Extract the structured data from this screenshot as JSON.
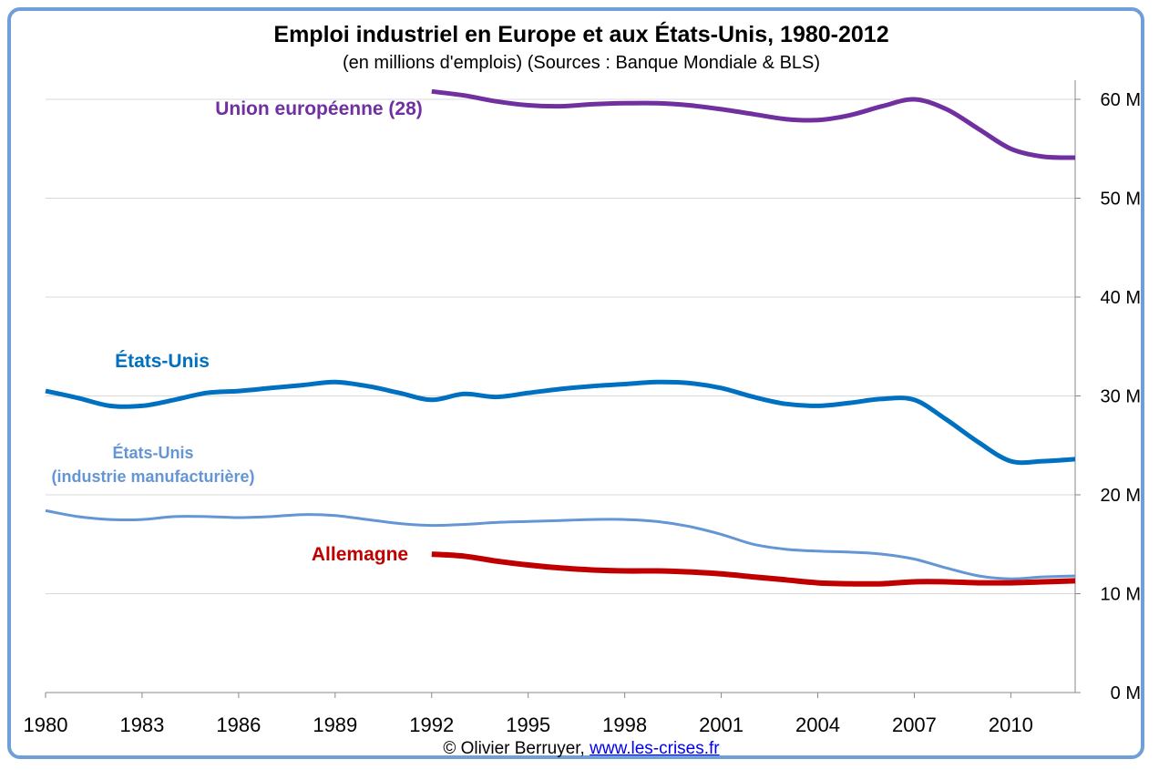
{
  "title": "Emploi industriel en Europe et aux États-Unis, 1980-2012",
  "subtitle": "(en millions d'emplois) (Sources : Banque Mondiale & BLS)",
  "footer": {
    "author": "© Olivier Berruyer,",
    "link": "www.les-crises.fr"
  },
  "chart_data": {
    "type": "line",
    "title": "Emploi industriel en Europe et aux États-Unis, 1980-2012",
    "subtitle": "(en millions d'emplois) (Sources : Banque Mondiale & BLS)",
    "x_ticks": [
      "1980",
      "1983",
      "1986",
      "1989",
      "1992",
      "1995",
      "1998",
      "2001",
      "2004",
      "2007",
      "2010"
    ],
    "y_ticks": [
      "0 M",
      "10 M",
      "20 M",
      "30 M",
      "40 M",
      "50 M",
      "60 M"
    ],
    "xlim": [
      1980,
      2012
    ],
    "ylim": [
      0,
      62
    ],
    "y_axis_position": "right",
    "grid": "horizontal",
    "series": [
      {
        "name": "Union européenne (28)",
        "color": "#7030a0",
        "label_lines": [
          "Union européenne (28)"
        ],
        "x": [
          1992,
          1993,
          1994,
          1995,
          1996,
          1997,
          1998,
          1999,
          2000,
          2001,
          2002,
          2003,
          2004,
          2005,
          2006,
          2007,
          2008,
          2009,
          2010,
          2011,
          2012
        ],
        "values": [
          60.8,
          60.4,
          59.8,
          59.4,
          59.3,
          59.5,
          59.6,
          59.6,
          59.4,
          59.0,
          58.5,
          58.0,
          57.9,
          58.4,
          59.3,
          60.0,
          59.0,
          57.0,
          55.0,
          54.2,
          54.1
        ]
      },
      {
        "name": "États-Unis",
        "color": "#0070c0",
        "label_lines": [
          "États-Unis"
        ],
        "x": [
          1980,
          1981,
          1982,
          1983,
          1984,
          1985,
          1986,
          1987,
          1988,
          1989,
          1990,
          1991,
          1992,
          1993,
          1994,
          1995,
          1996,
          1997,
          1998,
          1999,
          2000,
          2001,
          2002,
          2003,
          2004,
          2005,
          2006,
          2007,
          2008,
          2009,
          2010,
          2011,
          2012
        ],
        "values": [
          30.5,
          29.8,
          29.0,
          29.0,
          29.6,
          30.3,
          30.5,
          30.8,
          31.1,
          31.4,
          31.0,
          30.3,
          29.6,
          30.2,
          29.9,
          30.3,
          30.7,
          31.0,
          31.2,
          31.4,
          31.3,
          30.8,
          29.9,
          29.2,
          29.0,
          29.3,
          29.7,
          29.6,
          27.6,
          25.3,
          23.4,
          23.4,
          23.6
        ]
      },
      {
        "name": "États-Unis (industrie manufacturière)",
        "color": "#6495d4",
        "label_lines": [
          "États-Unis",
          "(industrie manufacturière)"
        ],
        "x": [
          1980,
          1981,
          1982,
          1983,
          1984,
          1985,
          1986,
          1987,
          1988,
          1989,
          1990,
          1991,
          1992,
          1993,
          1994,
          1995,
          1996,
          1997,
          1998,
          1999,
          2000,
          2001,
          2002,
          2003,
          2004,
          2005,
          2006,
          2007,
          2008,
          2009,
          2010,
          2011,
          2012
        ],
        "values": [
          18.4,
          17.8,
          17.5,
          17.5,
          17.8,
          17.8,
          17.7,
          17.8,
          18.0,
          17.9,
          17.5,
          17.1,
          16.9,
          17.0,
          17.2,
          17.3,
          17.4,
          17.5,
          17.5,
          17.3,
          16.8,
          16.0,
          15.0,
          14.5,
          14.3,
          14.2,
          14.0,
          13.5,
          12.6,
          11.8,
          11.5,
          11.7,
          11.8
        ]
      },
      {
        "name": "Allemagne",
        "color": "#c00000",
        "label_lines": [
          "Allemagne"
        ],
        "x": [
          1992,
          1993,
          1994,
          1995,
          1996,
          1997,
          1998,
          1999,
          2000,
          2001,
          2002,
          2003,
          2004,
          2005,
          2006,
          2007,
          2008,
          2009,
          2010,
          2011,
          2012
        ],
        "values": [
          14.0,
          13.8,
          13.3,
          12.9,
          12.6,
          12.4,
          12.3,
          12.3,
          12.2,
          12.0,
          11.7,
          11.4,
          11.1,
          11.0,
          11.0,
          11.2,
          11.2,
          11.1,
          11.1,
          11.2,
          11.3
        ]
      }
    ]
  }
}
